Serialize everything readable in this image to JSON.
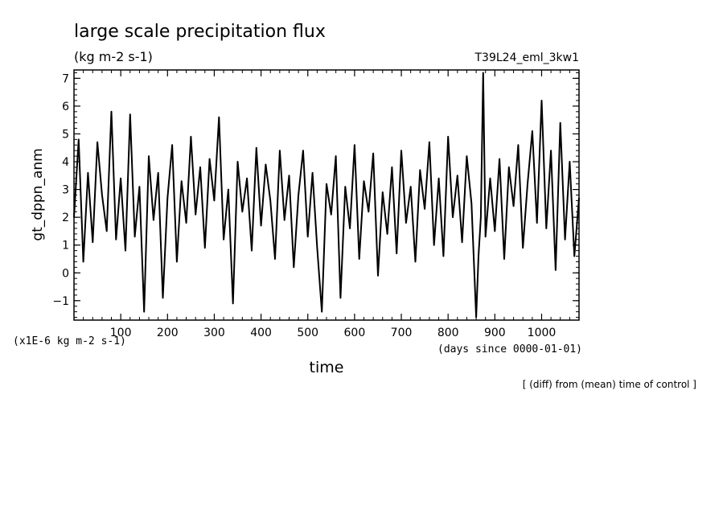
{
  "figure": {
    "title": "large scale precipitation flux",
    "units_label": "(kg m-2 s-1)",
    "run_label": "T39L24_eml_3kw1",
    "ylabel": "gt_dppn_anm",
    "xlabel": "time",
    "y_scale_note": "(x1E-6 kg m-2 s-1)",
    "x_units_note": "(days since 0000-01-01)",
    "footnote": "[ (diff) from (mean) time of control ]"
  },
  "chart_data": {
    "type": "line",
    "title": "large scale precipitation flux",
    "xlabel": "time",
    "ylabel": "gt_dppn_anm",
    "xlim": [
      0,
      1080
    ],
    "ylim": [
      -1.7,
      7.3
    ],
    "x_ticks": [
      100,
      200,
      300,
      400,
      500,
      600,
      700,
      800,
      900,
      1000
    ],
    "y_ticks": [
      -1,
      0,
      1,
      2,
      3,
      4,
      5,
      6,
      7
    ],
    "grid": false,
    "line_color": "#000000",
    "series": [
      {
        "x": [
          0,
          10,
          20,
          30,
          40,
          50,
          60,
          70,
          80,
          90,
          100,
          110,
          120,
          130,
          140,
          150,
          160,
          170,
          180,
          190,
          200,
          210,
          220,
          230,
          240,
          250,
          260,
          270,
          280,
          290,
          300,
          310,
          320,
          330,
          340,
          350,
          360,
          370,
          380,
          390,
          400,
          410,
          420,
          430,
          440,
          450,
          460,
          470,
          480,
          490,
          500,
          510,
          520,
          530,
          540,
          550,
          560,
          570,
          580,
          590,
          600,
          610,
          620,
          630,
          640,
          650,
          660,
          670,
          680,
          690,
          700,
          710,
          720,
          730,
          740,
          750,
          760,
          770,
          780,
          790,
          800,
          810,
          820,
          830,
          840,
          850,
          860,
          865,
          870,
          875,
          880,
          890,
          900,
          910,
          920,
          930,
          940,
          950,
          960,
          970,
          980,
          990,
          1000,
          1010,
          1020,
          1030,
          1040,
          1050,
          1060,
          1070,
          1080
        ],
        "values": [
          2.0,
          4.8,
          0.4,
          3.6,
          1.1,
          4.7,
          2.8,
          1.5,
          5.8,
          1.2,
          3.4,
          0.8,
          5.7,
          1.3,
          3.1,
          -1.4,
          4.2,
          1.9,
          3.6,
          -0.9,
          2.7,
          4.6,
          0.4,
          3.3,
          1.8,
          4.9,
          2.1,
          3.8,
          0.9,
          4.1,
          2.6,
          5.6,
          1.2,
          3.0,
          -1.1,
          4.0,
          2.2,
          3.4,
          0.8,
          4.5,
          1.7,
          3.9,
          2.6,
          0.5,
          4.4,
          1.9,
          3.5,
          0.2,
          2.8,
          4.4,
          1.3,
          3.6,
          0.9,
          -1.4,
          3.2,
          2.1,
          4.2,
          -0.9,
          3.1,
          1.6,
          4.6,
          0.5,
          3.3,
          2.2,
          4.3,
          -0.1,
          2.9,
          1.4,
          3.8,
          0.7,
          4.4,
          1.8,
          3.1,
          0.4,
          3.7,
          2.3,
          4.7,
          1.0,
          3.4,
          0.6,
          4.9,
          2.0,
          3.5,
          1.1,
          4.2,
          2.5,
          -1.6,
          0.6,
          2.0,
          7.2,
          1.3,
          3.4,
          1.5,
          4.1,
          0.5,
          3.8,
          2.4,
          4.6,
          0.9,
          3.2,
          5.1,
          1.8,
          6.2,
          1.6,
          4.4,
          0.1,
          5.4,
          1.2,
          4.0,
          0.6,
          2.7
        ]
      }
    ]
  }
}
